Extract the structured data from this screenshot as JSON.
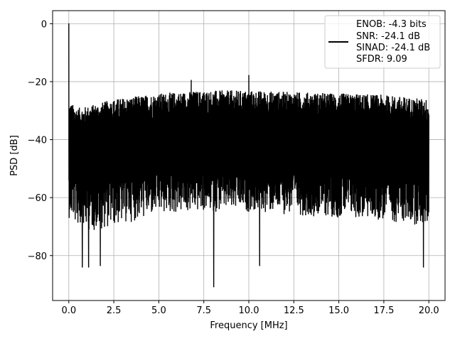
{
  "chart_data": {
    "type": "line",
    "title": "",
    "xlabel": "Frequency [MHz]",
    "ylabel": "PSD [dB]",
    "xlim": [
      -0.9,
      20.9
    ],
    "ylim": [
      -95.5,
      4.5
    ],
    "x_ticks": [
      0.0,
      2.5,
      5.0,
      7.5,
      10.0,
      12.5,
      15.0,
      17.5,
      20.0
    ],
    "x_tick_labels": [
      "0.0",
      "2.5",
      "5.0",
      "7.5",
      "10.0",
      "12.5",
      "15.0",
      "17.5",
      "20.0"
    ],
    "y_ticks": [
      0,
      -20,
      -40,
      -60,
      -80
    ],
    "y_tick_labels": [
      "0",
      "−20",
      "−40",
      "−60",
      "−80"
    ],
    "grid": true,
    "legend_position": "top-right",
    "legend_lines": [
      "ENOB: -4.3 bits",
      "SNR: -24.1 dB",
      "SINAD: -24.1 dB",
      "SFDR: 9.09"
    ],
    "series_color": "#000000",
    "envelope": {
      "x": [
        0.0,
        0.5,
        1.0,
        2.5,
        5.0,
        7.5,
        10.0,
        12.5,
        15.0,
        17.5,
        20.0
      ],
      "upper": [
        -27,
        -29,
        -28.5,
        -26,
        -24,
        -23,
        -23,
        -23.5,
        -24,
        -24.5,
        -26
      ],
      "lower": [
        -67,
        -70,
        -72,
        -70,
        -66,
        -65,
        -65,
        -66,
        -67,
        -68,
        -70
      ],
      "center": [
        -45,
        -46,
        -46,
        -45,
        -44,
        -43.5,
        -43.5,
        -44,
        -44.5,
        -45,
        -46
      ]
    },
    "peaks": [
      {
        "x": 0.0,
        "y": 0.0
      },
      {
        "x": 6.8,
        "y": -19.5
      },
      {
        "x": 10.0,
        "y": -17.8
      }
    ],
    "dips": [
      {
        "x": 0.75,
        "y": -84
      },
      {
        "x": 1.1,
        "y": -84
      },
      {
        "x": 1.75,
        "y": -83.5
      },
      {
        "x": 8.05,
        "y": -90.8
      },
      {
        "x": 10.6,
        "y": -83.5
      },
      {
        "x": 19.7,
        "y": -84
      }
    ]
  }
}
